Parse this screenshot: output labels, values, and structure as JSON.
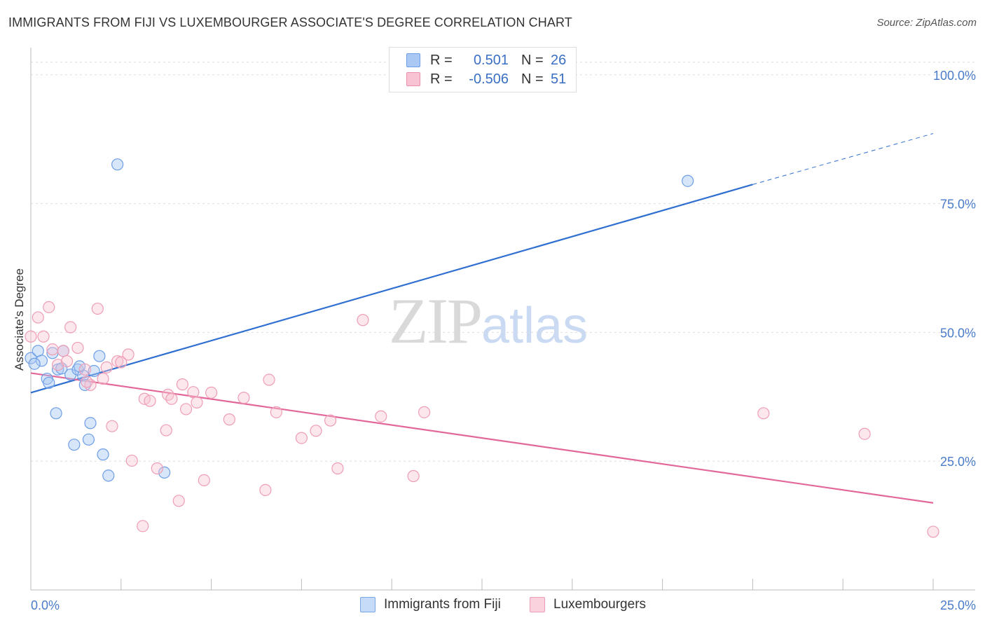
{
  "header": {
    "title": "IMMIGRANTS FROM FIJI VS LUXEMBOURGER ASSOCIATE'S DEGREE CORRELATION CHART",
    "source": "Source: ZipAtlas.com"
  },
  "watermark": {
    "zip": "ZIP",
    "atlas": "atlas"
  },
  "legend": {
    "rows": [
      {
        "r_label": "R =",
        "r_value": "0.501",
        "n_label": "N =",
        "n_value": "26",
        "color": "#a9c8f3",
        "border": "#6d9ee6"
      },
      {
        "r_label": "R =",
        "r_value": "-0.506",
        "n_label": "N =",
        "n_value": "51",
        "color": "#f8c4d3",
        "border": "#ec8fab"
      }
    ]
  },
  "bottom_legend": {
    "items": [
      {
        "label": "Immigrants from Fiji",
        "color": "#c6dbf7",
        "border": "#7aa6e6"
      },
      {
        "label": "Luxembourgers",
        "color": "#f9d2de",
        "border": "#ee9db5"
      }
    ]
  },
  "chart_data": {
    "type": "scatter",
    "title": "IMMIGRANTS FROM FIJI VS LUXEMBOURGER ASSOCIATE'S DEGREE CORRELATION CHART",
    "xlabel": "",
    "ylabel": "Associate's Degree",
    "xlim": [
      0,
      25
    ],
    "ylim": [
      0,
      105
    ],
    "x_tick_labels": [
      "0.0%",
      "25.0%"
    ],
    "y_ticks": [
      25,
      50,
      75,
      100
    ],
    "y_tick_labels": [
      "25.0%",
      "50.0%",
      "75.0%",
      "100.0%"
    ],
    "grid": "horizontal dashed",
    "legend_placement": "top-center",
    "series": [
      {
        "name": "Immigrants from Fiji",
        "color": "#6d9ee6",
        "fill": "rgba(169,200,243,0.45)",
        "trend_color": "#2f6fd0",
        "trend": {
          "x": [
            0,
            20
          ],
          "y": [
            38.3,
            78.7
          ],
          "dashed_to": [
            25,
            88.6
          ]
        },
        "points": [
          [
            0.0,
            45.0
          ],
          [
            0.2,
            46.4
          ],
          [
            0.3,
            44.5
          ],
          [
            0.45,
            41.0
          ],
          [
            0.5,
            40.2
          ],
          [
            0.6,
            46.0
          ],
          [
            0.7,
            34.3
          ],
          [
            0.75,
            42.8
          ],
          [
            0.9,
            46.4
          ],
          [
            1.1,
            41.8
          ],
          [
            1.2,
            28.2
          ],
          [
            1.3,
            42.8
          ],
          [
            1.45,
            41.6
          ],
          [
            1.5,
            39.8
          ],
          [
            1.6,
            29.2
          ],
          [
            1.65,
            32.4
          ],
          [
            1.75,
            42.5
          ],
          [
            1.9,
            45.4
          ],
          [
            2.0,
            26.3
          ],
          [
            2.15,
            22.2
          ],
          [
            2.4,
            82.6
          ],
          [
            3.7,
            22.8
          ],
          [
            18.2,
            79.4
          ],
          [
            0.1,
            43.9
          ],
          [
            1.35,
            43.4
          ],
          [
            0.85,
            43.0
          ]
        ]
      },
      {
        "name": "Luxembourgers",
        "color": "#ee9db5",
        "fill": "rgba(248,196,211,0.4)",
        "trend_color": "#e2679a",
        "trend": {
          "x": [
            0,
            25
          ],
          "y": [
            42.1,
            16.9
          ]
        },
        "points": [
          [
            0.0,
            49.2
          ],
          [
            0.2,
            52.9
          ],
          [
            0.35,
            49.2
          ],
          [
            0.5,
            54.9
          ],
          [
            0.6,
            46.7
          ],
          [
            0.75,
            43.7
          ],
          [
            0.9,
            46.4
          ],
          [
            1.0,
            44.4
          ],
          [
            1.1,
            51.0
          ],
          [
            1.3,
            47.0
          ],
          [
            1.5,
            42.8
          ],
          [
            1.65,
            39.8
          ],
          [
            1.85,
            54.6
          ],
          [
            2.0,
            41.0
          ],
          [
            2.1,
            43.2
          ],
          [
            2.25,
            31.8
          ],
          [
            2.4,
            44.4
          ],
          [
            2.5,
            44.2
          ],
          [
            2.7,
            45.7
          ],
          [
            2.8,
            25.1
          ],
          [
            3.1,
            12.4
          ],
          [
            3.15,
            37.1
          ],
          [
            3.3,
            36.7
          ],
          [
            3.5,
            23.6
          ],
          [
            3.75,
            31.0
          ],
          [
            3.8,
            37.9
          ],
          [
            3.9,
            37.1
          ],
          [
            4.1,
            17.3
          ],
          [
            4.2,
            39.9
          ],
          [
            4.3,
            35.1
          ],
          [
            4.5,
            38.4
          ],
          [
            4.6,
            36.4
          ],
          [
            4.8,
            21.3
          ],
          [
            5.0,
            38.3
          ],
          [
            5.5,
            33.1
          ],
          [
            5.9,
            37.3
          ],
          [
            6.5,
            19.4
          ],
          [
            6.6,
            40.8
          ],
          [
            6.8,
            34.5
          ],
          [
            7.5,
            29.5
          ],
          [
            7.9,
            30.9
          ],
          [
            8.3,
            32.9
          ],
          [
            8.5,
            23.6
          ],
          [
            9.2,
            52.4
          ],
          [
            9.7,
            33.7
          ],
          [
            10.6,
            22.1
          ],
          [
            10.9,
            34.5
          ],
          [
            20.3,
            34.3
          ],
          [
            23.1,
            30.3
          ],
          [
            25.0,
            11.3
          ],
          [
            1.55,
            40.4
          ]
        ]
      }
    ]
  }
}
